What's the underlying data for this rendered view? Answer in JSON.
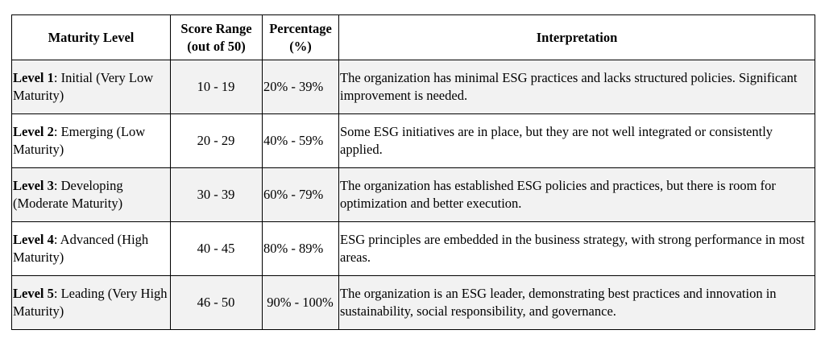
{
  "table": {
    "headers": {
      "maturity_level": "Maturity Level",
      "score_range_line1": "Score Range",
      "score_range_line2": "(out of 50)",
      "percentage_line1": "Percentage",
      "percentage_line2": "(%)",
      "interpretation": "Interpretation"
    },
    "rows": [
      {
        "level_name": "Level 1",
        "level_desc": ": Initial (Very Low Maturity)",
        "score_range": "10 - 19",
        "percentage": "20% - 39%",
        "interpretation": "The organization has minimal ESG practices and lacks structured policies. Significant improvement is needed."
      },
      {
        "level_name": "Level 2",
        "level_desc": ": Emerging (Low Maturity)",
        "score_range": "20 - 29",
        "percentage": "40% - 59%",
        "interpretation": "Some ESG initiatives are in place, but they are not well integrated or consistently applied."
      },
      {
        "level_name": "Level 3",
        "level_desc": ": Developing (Moderate Maturity)",
        "score_range": "30 - 39",
        "percentage": "60% - 79%",
        "interpretation": "The organization has established ESG policies and practices, but there is room for optimization and better execution."
      },
      {
        "level_name": "Level 4",
        "level_desc": ": Advanced (High Maturity)",
        "score_range": "40 - 45",
        "percentage": "80% - 89%",
        "interpretation": "ESG principles are embedded in the business strategy, with strong performance in most areas."
      },
      {
        "level_name": "Level 5",
        "level_desc": ": Leading (Very High Maturity)",
        "score_range": "46 - 50",
        "percentage": "90% - 100%",
        "interpretation": "The organization is an ESG leader, demonstrating best practices and innovation in sustainability, social responsibility, and governance."
      }
    ]
  },
  "colors": {
    "border": "#000000",
    "row_shade": "#f2f2f2",
    "row_plain": "#ffffff"
  }
}
